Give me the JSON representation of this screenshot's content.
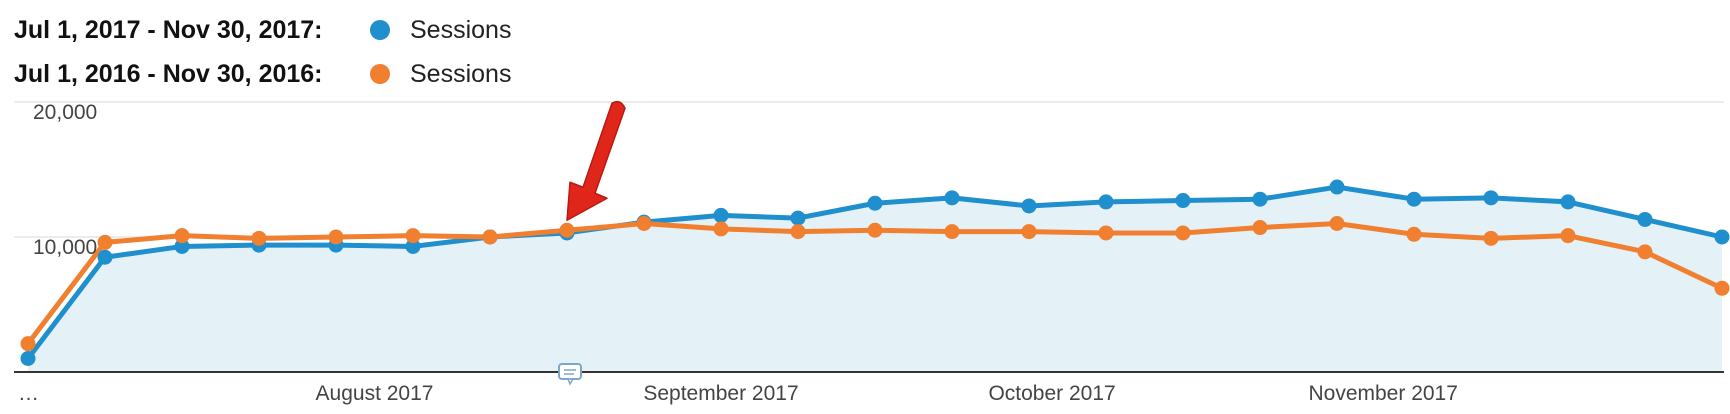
{
  "chart_data": {
    "type": "line",
    "title": "",
    "xlabel": "",
    "ylabel": "",
    "ylim": [
      0,
      20000
    ],
    "y_ticks": [
      {
        "value": 20000,
        "label": "20,000"
      },
      {
        "value": 10000,
        "label": "10,000"
      }
    ],
    "x_ticks": [
      {
        "index": 0,
        "label": "…"
      },
      {
        "index": 4.5,
        "label": "August 2017"
      },
      {
        "index": 9,
        "label": "September 2017"
      },
      {
        "index": 13.3,
        "label": "October 2017"
      },
      {
        "index": 17.6,
        "label": "November 2017"
      }
    ],
    "grid": true,
    "legend_placement": "top-left",
    "series": [
      {
        "name": "Sessions",
        "range": "Jul 1, 2017 - Nov 30, 2017:",
        "color": "#1f8fce",
        "filled": true,
        "values": [
          1000,
          8500,
          9300,
          9400,
          9400,
          9300,
          10000,
          10300,
          11100,
          11600,
          11400,
          12500,
          12900,
          12300,
          12600,
          12700,
          12800,
          13700,
          12800,
          12900,
          12600,
          11300,
          10000
        ]
      },
      {
        "name": "Sessions",
        "range": "Jul 1, 2016 - Nov 30, 2016:",
        "color": "#f07f2f",
        "filled": false,
        "values": [
          2100,
          9600,
          10100,
          9900,
          10000,
          10100,
          10000,
          10500,
          11000,
          10600,
          10400,
          10500,
          10400,
          10400,
          10300,
          10300,
          10700,
          11000,
          10200,
          9900,
          10100,
          8900,
          6200
        ]
      }
    ]
  },
  "colors": {
    "area_fill": "#e4f2f8",
    "grid": "#e6e6e6",
    "axis": "#333333",
    "arrow": "#e0261b",
    "annotation_icon": "#7ea6c8"
  },
  "annotation": {
    "icon": "comment-icon",
    "arrow_target_index": 7
  }
}
